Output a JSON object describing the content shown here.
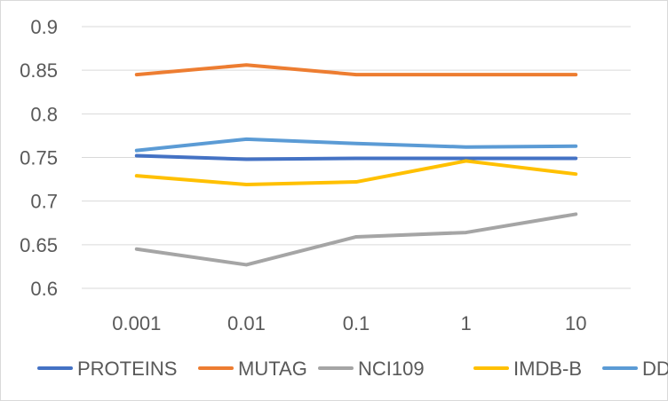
{
  "chart_data": {
    "type": "line",
    "categories": [
      "0.001",
      "0.01",
      "0.1",
      "1",
      "10"
    ],
    "ylim": [
      0.6,
      0.9
    ],
    "yticks": [
      "0.6",
      "0.65",
      "0.7",
      "0.75",
      "0.8",
      "0.85",
      "0.9"
    ],
    "grid": true,
    "legend_position": "bottom",
    "series": [
      {
        "name": "PROTEINS",
        "color": "#4472c4",
        "values": [
          0.752,
          0.748,
          0.749,
          0.749,
          0.749
        ]
      },
      {
        "name": "MUTAG",
        "color": "#ed7d31",
        "values": [
          0.845,
          0.856,
          0.845,
          0.845,
          0.845
        ]
      },
      {
        "name": "NCI109",
        "color": "#a5a5a5",
        "values": [
          0.645,
          0.627,
          0.659,
          0.664,
          0.685
        ]
      },
      {
        "name": "IMDB-B",
        "color": "#ffc000",
        "values": [
          0.729,
          0.719,
          0.722,
          0.746,
          0.731
        ]
      },
      {
        "name": "DD",
        "color": "#5b9bd5",
        "values": [
          0.758,
          0.771,
          0.766,
          0.762,
          0.763
        ]
      }
    ]
  }
}
